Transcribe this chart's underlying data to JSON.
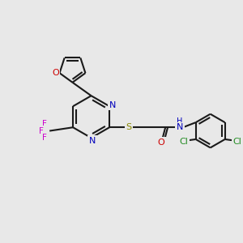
{
  "background_color": "#e8e8e8",
  "bond_color": "#1a1a1a",
  "nitrogen_color": "#0000bb",
  "oxygen_color": "#cc0000",
  "sulfur_color": "#888800",
  "fluorine_color": "#cc00cc",
  "chlorine_color": "#228b22",
  "figsize": [
    3.0,
    3.0
  ],
  "dpi": 100,
  "xlim": [
    0,
    10
  ],
  "ylim": [
    0,
    10
  ]
}
